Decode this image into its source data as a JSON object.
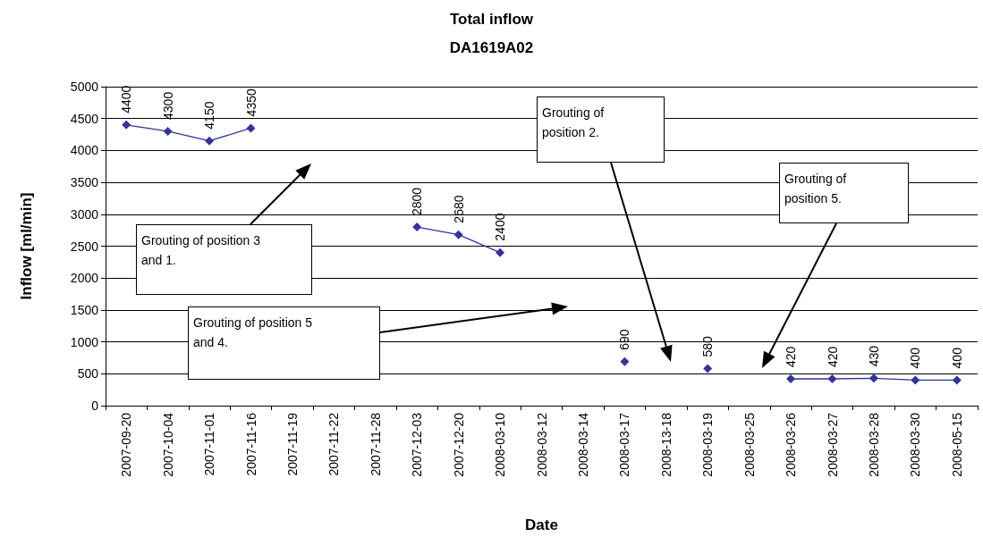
{
  "chart_data": {
    "type": "line",
    "title": "Total inflow",
    "subtitle": "DA1619A02",
    "xlabel": "Date",
    "ylabel": "Inflow [ml/min]",
    "categories": [
      "2007-09-20",
      "2007-10-04",
      "2007-11-01",
      "2007-11-16",
      "2007-11-19",
      "2007-11-22",
      "2007-11-28",
      "2007-12-03",
      "2007-12-20",
      "2008-03-10",
      "2008-03-12",
      "2008-03-14",
      "2008-03-17",
      "2008-13-18",
      "2008-03-19",
      "2008-03-25",
      "2008-03-26",
      "2008-03-27",
      "2008-03-28",
      "2008-03-30",
      "2008-05-15"
    ],
    "series": [
      {
        "color": "#333399",
        "values": [
          4400,
          4300,
          4150,
          4350,
          null,
          null,
          null,
          2800,
          2680,
          2400,
          null,
          null,
          690,
          null,
          580,
          null,
          420,
          420,
          430,
          400,
          400
        ]
      }
    ],
    "ylim": [
      0,
      5000
    ],
    "yticks": [
      0,
      500,
      1000,
      1500,
      2000,
      2500,
      3000,
      3500,
      4000,
      4500,
      5000
    ],
    "grid": "y",
    "marker": "diamond",
    "line_style": "solid",
    "data_labels": true,
    "annotations": [
      "Grouting of position 3 and 1.",
      "Grouting of position 5 and 4.",
      "Grouting of position 2.",
      "Grouting of position 5."
    ]
  }
}
